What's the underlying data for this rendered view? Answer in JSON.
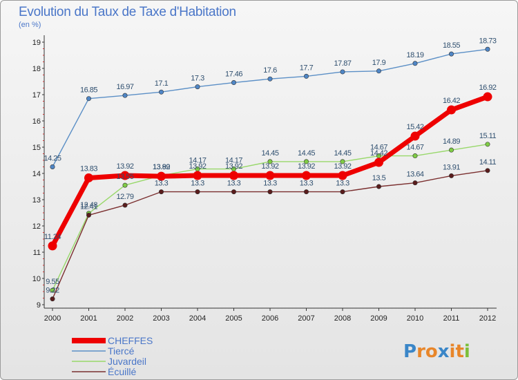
{
  "chart_data": {
    "type": "line",
    "title": "Evolution du Taux de Taxe d'Habitation",
    "subtitle": "(en %)",
    "x": [
      "2000",
      "2001",
      "2002",
      "2003",
      "2004",
      "2005",
      "2006",
      "2007",
      "2008",
      "2009",
      "2010",
      "2011",
      "2012"
    ],
    "ylim": [
      9,
      19
    ],
    "yticks": [
      9,
      10,
      11,
      12,
      13,
      14,
      15,
      16,
      17,
      18,
      19
    ],
    "grid": false,
    "legend_position": "bottom-left",
    "series": [
      {
        "name": "Tiercé",
        "color": "#5b8fc6",
        "width": 1.4,
        "marker": 3.2,
        "markerColor": "#4f86c6",
        "values": [
          14.25,
          16.85,
          16.97,
          17.1,
          17.3,
          17.46,
          17.6,
          17.7,
          17.87,
          17.9,
          18.19,
          18.55,
          18.73
        ],
        "labels": [
          "14.25",
          "16.85",
          "16.97",
          "17.1",
          "17.3",
          "17.46",
          "17.6",
          "17.7",
          "17.87",
          "17.9",
          "18.19",
          "18.55",
          "18.73"
        ]
      },
      {
        "name": "Juvardeil",
        "color": "#98d86a",
        "width": 1.4,
        "marker": 3.2,
        "markerColor": "#7fcc45",
        "values": [
          9.55,
          12.48,
          13.55,
          13.92,
          14.17,
          14.17,
          14.45,
          14.45,
          14.45,
          14.67,
          14.67,
          14.89,
          15.11
        ],
        "labels": [
          "9.55",
          "12.48",
          "13.55",
          "13.92",
          "14.17",
          "14.17",
          "14.45",
          "14.45",
          "14.45",
          "14.67",
          "14.67",
          "14.89",
          "15.11"
        ]
      },
      {
        "name": "Écuillé",
        "color": "#7a2e2e",
        "width": 1.4,
        "marker": 3.2,
        "markerColor": "#5a1c1c",
        "values": [
          9.22,
          12.41,
          12.79,
          13.3,
          13.3,
          13.3,
          13.3,
          13.3,
          13.3,
          13.5,
          13.64,
          13.91,
          14.11
        ],
        "labels": [
          "9.22",
          "12.41",
          "12.79",
          "13.3",
          "13.3",
          "13.3",
          "13.3",
          "13.3",
          "13.3",
          "13.5",
          "13.64",
          "13.91",
          "14.11"
        ]
      },
      {
        "name": "CHEFFES",
        "color": "#ee0000",
        "width": 7,
        "marker": 6.5,
        "markerColor": "#ee0000",
        "values": [
          11.24,
          13.83,
          13.92,
          13.89,
          13.92,
          13.92,
          13.92,
          13.92,
          13.92,
          14.42,
          15.42,
          16.42,
          16.92
        ],
        "labels": [
          "11.24",
          "13.83",
          "13.92",
          "13.89",
          "13.92",
          "13.92",
          "13.92",
          "13.92",
          "13.92",
          "14.42",
          "15.42",
          "16.42",
          "16.92"
        ]
      }
    ]
  },
  "legend": {
    "items": [
      {
        "label": "CHEFFES",
        "color": "#ee0000",
        "width": 8
      },
      {
        "label": "Tiercé",
        "color": "#5b8fc6",
        "width": 1.5
      },
      {
        "label": "Juvardeil",
        "color": "#98d86a",
        "width": 1.5
      },
      {
        "label": "Écuillé",
        "color": "#7a2e2e",
        "width": 1.5
      }
    ]
  },
  "logo": {
    "letters": [
      "P",
      "r",
      "o",
      "x",
      "i",
      "t",
      "i"
    ],
    "colors": [
      "#3a86c8",
      "#e8862a",
      "#e8862a",
      "#3a86c8",
      "#e8862a",
      "#e8862a",
      "#7cbf3a"
    ]
  }
}
